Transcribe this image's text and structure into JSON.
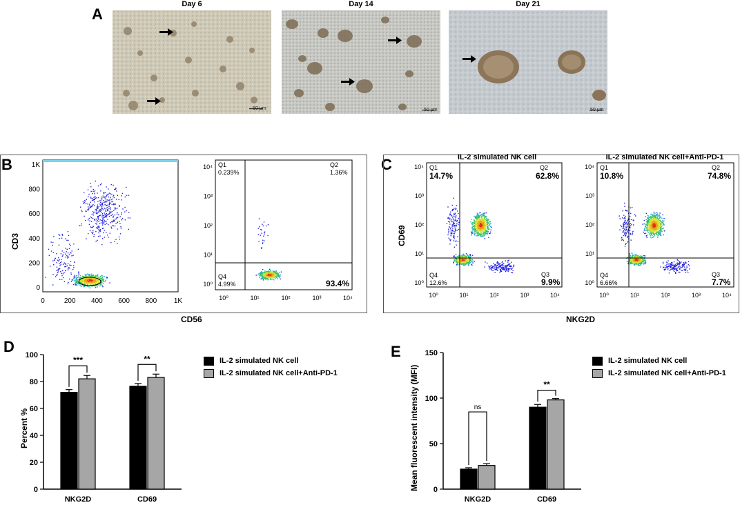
{
  "panel_letters": {
    "a": "A",
    "b": "B",
    "c": "C",
    "d": "D",
    "e": "E"
  },
  "panel_a": {
    "images": [
      {
        "title": "Day 6",
        "scale": "50 μm"
      },
      {
        "title": "Day 14",
        "scale": "50 μm"
      },
      {
        "title": "Day 21",
        "scale": "50 μm"
      }
    ]
  },
  "panel_b": {
    "xlabel": "CD56",
    "ylabel": "CD3",
    "scatter": {
      "x_ticks": [
        "0",
        "200",
        "400",
        "600",
        "800",
        "1K"
      ],
      "y_ticks": [
        "0",
        "200",
        "400",
        "600",
        "800",
        "1K"
      ]
    },
    "quadrant": {
      "q1_label": "Q1",
      "q1_value": "0.239%",
      "q2_label": "Q2",
      "q2_value": "1.36%",
      "q4_label": "Q4",
      "q4_value": "4.99%",
      "q3_value": "93.4%",
      "x_ticks": [
        "10⁰",
        "10¹",
        "10²",
        "10³",
        "10⁴"
      ],
      "y_ticks": [
        "10⁰",
        "10¹",
        "10²",
        "10³",
        "10⁴"
      ]
    }
  },
  "panel_c": {
    "xlabel": "NKG2D",
    "ylabel": "CD69",
    "plots": [
      {
        "title": "IL-2 simulated NK cell",
        "q1_label": "Q1",
        "q1": "14.7%",
        "q2_label": "Q2",
        "q2": "62.8%",
        "q3_label": "Q3",
        "q3": "9.9%",
        "q4_label": "Q4",
        "q4": "12.6%"
      },
      {
        "title": "IL-2 simulated NK cell+Anti-PD-1",
        "q1_label": "Q1",
        "q1": "10.8%",
        "q2_label": "Q2",
        "q2": "74.8%",
        "q3_label": "Q3",
        "q3": "7.7%",
        "q4_label": "Q4",
        "q4": "6.66%"
      }
    ],
    "ticks": [
      "10⁰",
      "10¹",
      "10²",
      "10³",
      "10⁴"
    ]
  },
  "chart_data": [
    {
      "type": "bar",
      "panel": "D",
      "categories": [
        "NKG2D",
        "CD69"
      ],
      "series": [
        {
          "name": "IL-2 simulated NK cell",
          "values": [
            72,
            76.5
          ],
          "errors": [
            2,
            2
          ],
          "color": "#000000"
        },
        {
          "name": "IL-2 simulated NK cell+Anti-PD-1",
          "values": [
            82,
            83
          ],
          "errors": [
            2.5,
            2.5
          ],
          "color": "#a6a6a6"
        }
      ],
      "significance": [
        "***",
        "**"
      ],
      "ylabel": "Percent %",
      "ylim": [
        0,
        100
      ],
      "yticks": [
        0,
        20,
        40,
        60,
        80,
        100
      ]
    },
    {
      "type": "bar",
      "panel": "E",
      "categories": [
        "NKG2D",
        "CD69"
      ],
      "series": [
        {
          "name": "IL-2 simulated NK cell",
          "values": [
            22,
            90
          ],
          "errors": [
            1.5,
            3
          ],
          "color": "#000000"
        },
        {
          "name": "IL-2 simulated NK cell+Anti-PD-1",
          "values": [
            26,
            98
          ],
          "errors": [
            2,
            1.5
          ],
          "color": "#a6a6a6"
        }
      ],
      "significance": [
        "ns",
        "**"
      ],
      "ylabel": "Mean fluorescent intensity (MFI)",
      "ylim": [
        0,
        150
      ],
      "yticks": [
        0,
        50,
        100,
        150
      ]
    }
  ]
}
